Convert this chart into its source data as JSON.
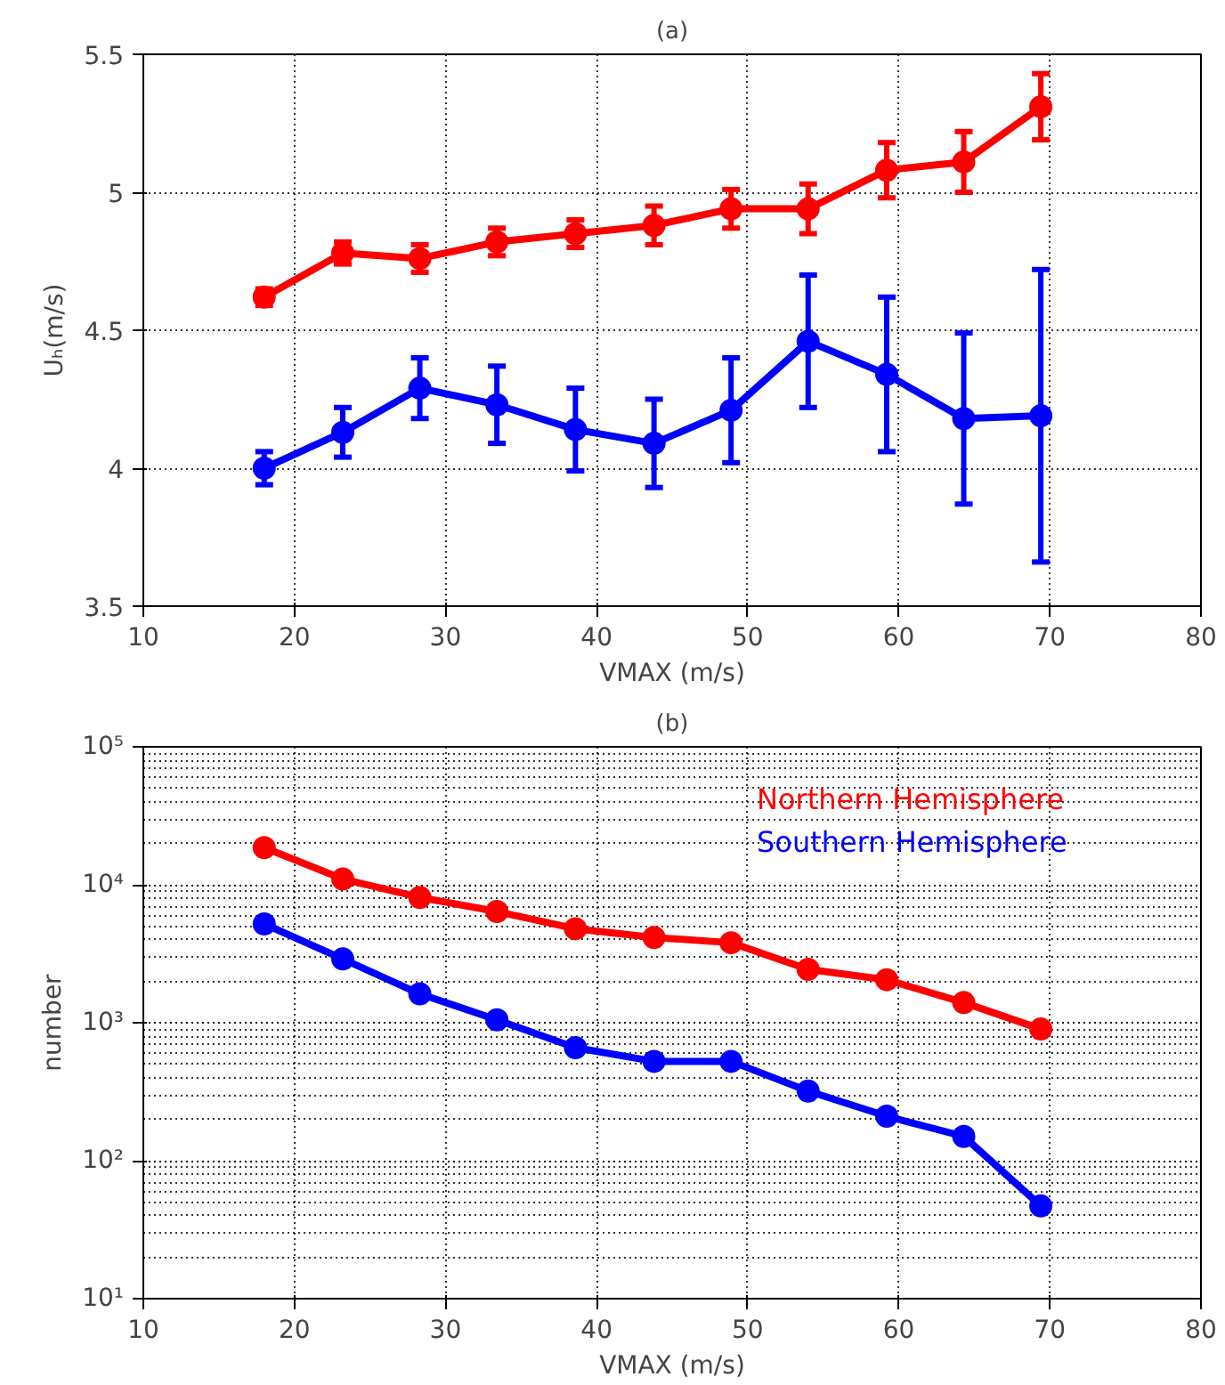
{
  "chart_data": [
    {
      "type": "line",
      "title": "(a)",
      "xlabel": "VMAX (m/s)",
      "ylabel": "Uₕ(m/s)",
      "x": [
        18,
        23.2,
        28.3,
        33.4,
        38.6,
        43.8,
        48.9,
        54,
        59.2,
        64.3,
        69.4
      ],
      "series": [
        {
          "color": "#ff0000",
          "values": [
            4.62,
            4.78,
            4.76,
            4.82,
            4.85,
            4.88,
            4.94,
            4.94,
            5.08,
            5.11,
            5.31
          ],
          "errors": [
            0.03,
            0.04,
            0.05,
            0.05,
            0.05,
            0.07,
            0.07,
            0.09,
            0.1,
            0.11,
            0.12
          ]
        },
        {
          "color": "#0000ff",
          "values": [
            4.0,
            4.13,
            4.29,
            4.23,
            4.14,
            4.09,
            4.21,
            4.46,
            4.34,
            4.18,
            4.19
          ],
          "errors": [
            0.06,
            0.09,
            0.11,
            0.14,
            0.15,
            0.16,
            0.19,
            0.24,
            0.28,
            0.31,
            0.53
          ]
        }
      ],
      "xlim": [
        10,
        80
      ],
      "xticks": [
        10,
        20,
        30,
        40,
        50,
        60,
        70,
        80
      ],
      "ylim": [
        3.5,
        5.5
      ],
      "yticks": [
        3.5,
        4,
        4.5,
        5,
        5.5
      ],
      "grid": true,
      "marker": "circle",
      "line_style": "solid",
      "legend": false
    },
    {
      "type": "line",
      "title": "(b)",
      "xlabel": "VMAX (m/s)",
      "ylabel": "number",
      "x": [
        18,
        23.2,
        28.3,
        33.4,
        38.6,
        43.8,
        48.9,
        54,
        59.2,
        64.3,
        69.4
      ],
      "series": [
        {
          "name": "Northern Hemisphere",
          "color": "#ff0000",
          "values": [
            18600,
            11000,
            8100,
            6400,
            4800,
            4150,
            3800,
            2440,
            2050,
            1400,
            900
          ]
        },
        {
          "name": "Southern Hemisphere",
          "color": "#0000ff",
          "values": [
            5200,
            2900,
            1620,
            1050,
            660,
            525,
            525,
            320,
            210,
            150,
            47
          ]
        }
      ],
      "xlim": [
        10,
        80
      ],
      "xticks": [
        10,
        20,
        30,
        40,
        50,
        60,
        70,
        80
      ],
      "ylim": [
        10,
        100000
      ],
      "yticks": [
        {
          "value": 10,
          "label": "10¹"
        },
        {
          "value": 100,
          "label": "10²"
        },
        {
          "value": 1000,
          "label": "10³"
        },
        {
          "value": 10000,
          "label": "10⁴"
        },
        {
          "value": 100000,
          "label": "10⁵"
        }
      ],
      "log": "y",
      "grid": true,
      "marker": "circle",
      "line_style": "solid",
      "legend": "top right"
    }
  ]
}
